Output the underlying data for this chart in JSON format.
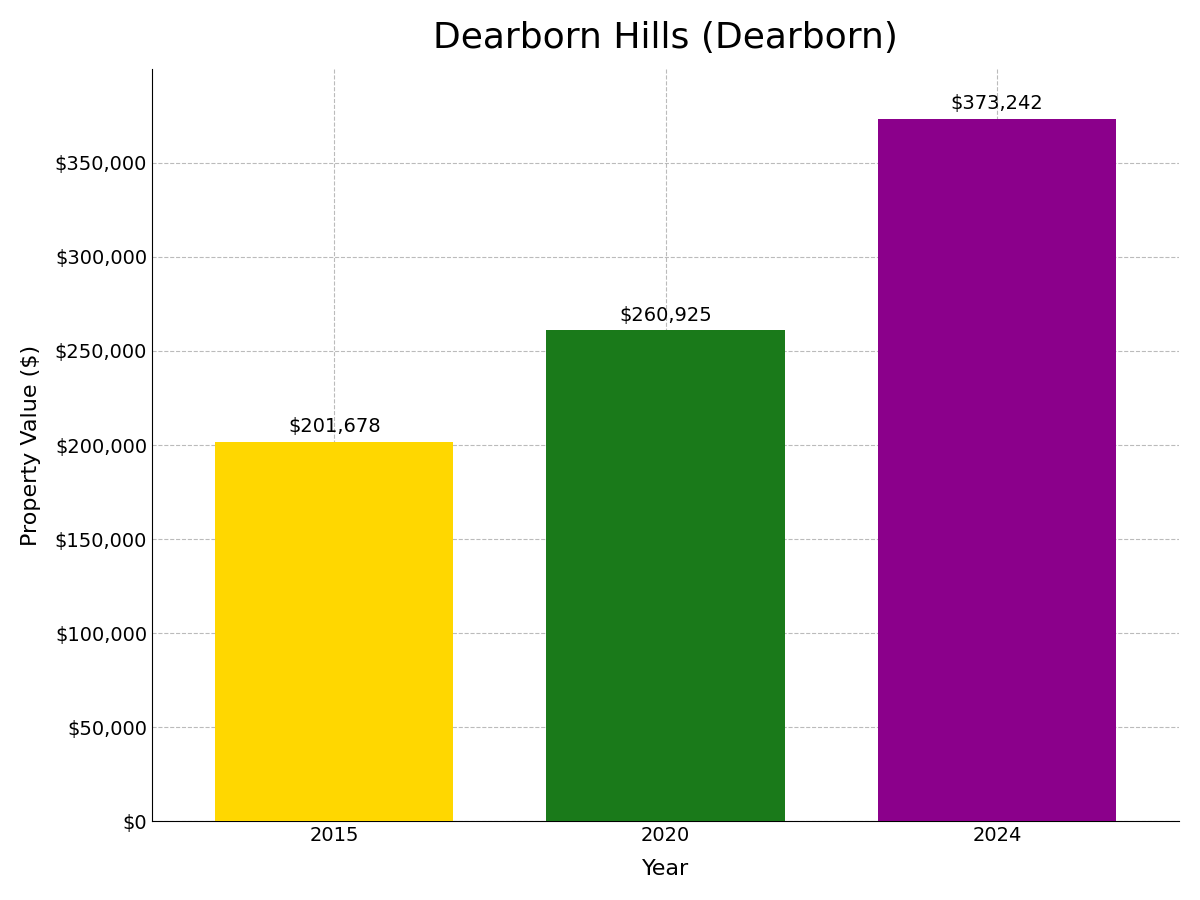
{
  "title": "Dearborn Hills (Dearborn)",
  "xlabel": "Year",
  "ylabel": "Property Value ($)",
  "categories": [
    "2015",
    "2020",
    "2024"
  ],
  "values": [
    201678,
    260925,
    373242
  ],
  "bar_colors": [
    "#FFD700",
    "#1a7a1a",
    "#8B008B"
  ],
  "annotations": [
    "$201,678",
    "$260,925",
    "$373,242"
  ],
  "ylim": [
    0,
    400000
  ],
  "yticks": [
    0,
    50000,
    100000,
    150000,
    200000,
    250000,
    300000,
    350000
  ],
  "ytick_labels": [
    "$0",
    "$50,000",
    "$100,000",
    "$150,000",
    "$200,000",
    "$250,000",
    "$300,000",
    "$350,000"
  ],
  "title_fontsize": 26,
  "label_fontsize": 16,
  "tick_fontsize": 14,
  "annotation_fontsize": 14,
  "background_color": "#ffffff",
  "bar_width": 0.72,
  "grid_color": "#aaaaaa",
  "grid_linestyle": "--",
  "grid_alpha": 0.8
}
